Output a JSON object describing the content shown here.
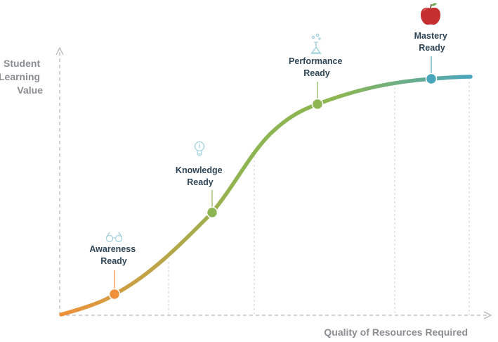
{
  "axes": {
    "y_label_lines": [
      "Student",
      "Learning",
      "Value"
    ],
    "x_label": "Quality of Resources Required"
  },
  "stages": [
    {
      "label_lines": [
        "Awareness",
        "Ready"
      ],
      "icon": "glasses-icon",
      "color": "#f0913a"
    },
    {
      "label_lines": [
        "Knowledge",
        "Ready"
      ],
      "icon": "lightbulb-icon",
      "color": "#8db653"
    },
    {
      "label_lines": [
        "Performance",
        "Ready"
      ],
      "icon": "flask-icon",
      "color": "#8db653"
    },
    {
      "label_lines": [
        "Mastery",
        "Ready"
      ],
      "icon": "apple-icon",
      "color": "#4aa6bd"
    }
  ],
  "colors": {
    "curve_start": "#f0913a",
    "curve_mid": "#8db653",
    "curve_end": "#4aa6bd",
    "axis": "#b5b8bb",
    "label_dark": "#2f4556",
    "label_grey": "#8a8d91",
    "icon_line": "#9fd0dc",
    "apple_red": "#c62f2f"
  }
}
